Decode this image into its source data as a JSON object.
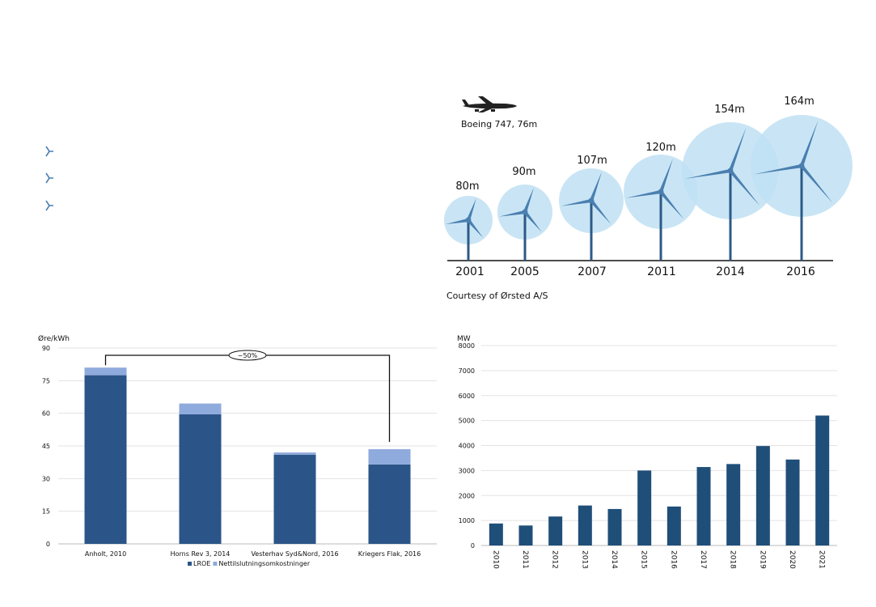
{
  "turbines": {
    "plane_label": "Boeing 747, 76m",
    "credit": "Courtesy of Ørsted A/S",
    "items": [
      {
        "year": "2001",
        "size": "80m"
      },
      {
        "year": "2005",
        "size": "90m"
      },
      {
        "year": "2007",
        "size": "107m"
      },
      {
        "year": "2011",
        "size": "120m"
      },
      {
        "year": "2014",
        "size": "154m"
      },
      {
        "year": "2016",
        "size": "164m"
      }
    ],
    "circle_color": "#bfe0f3",
    "blade_color": "#4a7fb0",
    "tower_color": "#2c5a87"
  },
  "chart_data": [
    {
      "type": "bar",
      "stacked": true,
      "ylabel": "Øre/kWh",
      "ylim": [
        0,
        90
      ],
      "yticks": [
        0,
        15,
        30,
        45,
        60,
        75,
        90
      ],
      "categories": [
        "Anholt, 2010",
        "Horns Rev 3, 2014",
        "Vesterhav Syd&Nord, 2016",
        "Kriegers Flak, 2016"
      ],
      "series": [
        {
          "name": "LROE",
          "values": [
            77.5,
            59.5,
            41,
            36.5
          ],
          "color": "#2b5588"
        },
        {
          "name": "Nettilslutningsomkostninger",
          "values": [
            3.5,
            5,
            1,
            7
          ],
          "color": "#8faadc"
        }
      ],
      "annotation": "~50%",
      "legend": "bottom",
      "grid": true
    },
    {
      "type": "bar",
      "ylabel": "MW",
      "ylim": [
        0,
        8000
      ],
      "yticks": [
        0,
        1000,
        2000,
        3000,
        4000,
        5000,
        6000,
        7000,
        8000
      ],
      "categories": [
        "2010",
        "2011",
        "2012",
        "2013",
        "2014",
        "2015",
        "2016",
        "2017",
        "2018",
        "2019",
        "2020",
        "2021"
      ],
      "values": [
        880,
        800,
        1160,
        1600,
        1460,
        3000,
        1560,
        3140,
        3260,
        3980,
        3440,
        5200
      ],
      "color": "#1f4e79",
      "grid": true
    }
  ]
}
